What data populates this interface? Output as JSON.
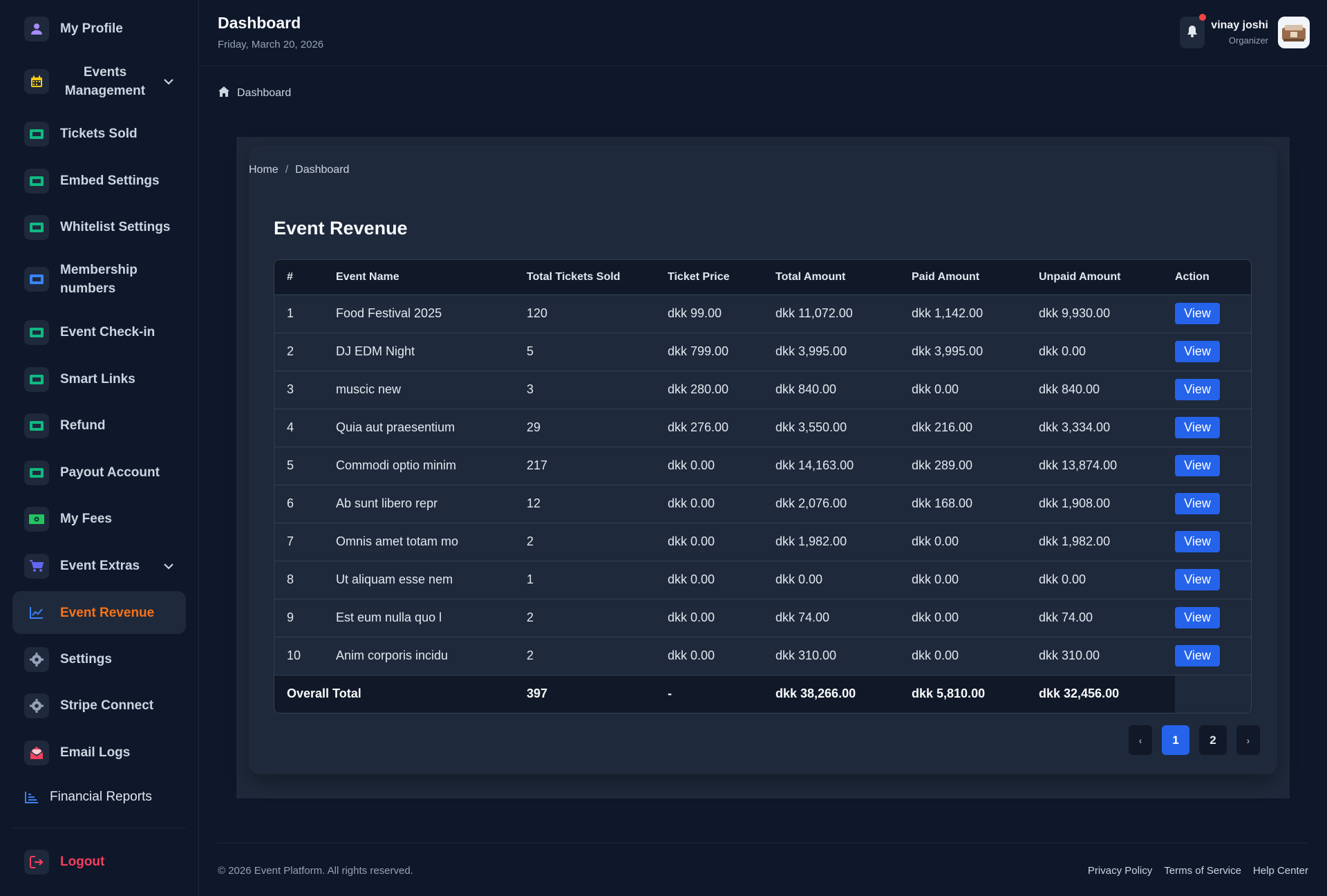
{
  "sidebar": {
    "items": [
      {
        "label": "My Profile",
        "icon": "user-icon",
        "color": "#a78bfa"
      },
      {
        "label": "Events\nManagement",
        "icon": "calendar-icon",
        "color": "#facc15"
      },
      {
        "label": "Tickets Sold",
        "icon": "ticket-icon",
        "color": "#10b981"
      },
      {
        "label": "Embed Settings",
        "icon": "ticket-icon",
        "color": "#10b981"
      },
      {
        "label": "Whitelist Settings",
        "icon": "ticket-icon",
        "color": "#10b981"
      },
      {
        "label": "Membership\nnumbers",
        "icon": "ticket-icon",
        "color": "#3b82f6"
      },
      {
        "label": "Event Check-in",
        "icon": "ticket-icon",
        "color": "#10b981"
      },
      {
        "label": "Smart Links",
        "icon": "ticket-icon",
        "color": "#10b981"
      },
      {
        "label": "Refund",
        "icon": "ticket-icon",
        "color": "#10b981"
      },
      {
        "label": "Payout Account",
        "icon": "ticket-icon",
        "color": "#10b981"
      },
      {
        "label": "My Fees",
        "icon": "money-icon",
        "color": "#22c55e"
      },
      {
        "label": "Event Extras",
        "icon": "cart-icon",
        "color": "#6366f1"
      },
      {
        "label": "Event Revenue",
        "icon": "chart-line-icon",
        "color": "#3b82f6"
      },
      {
        "label": "Settings",
        "icon": "gear-icon",
        "color": "#94a3b8"
      },
      {
        "label": "Stripe Connect",
        "icon": "gear-icon",
        "color": "#94a3b8"
      },
      {
        "label": "Email Logs",
        "icon": "envelope-open-icon",
        "color": "#f43f5e"
      },
      {
        "label": "Financial Reports",
        "icon": "bar-chart-icon",
        "color": "#3b82f6"
      }
    ],
    "logout_label": "Logout"
  },
  "header": {
    "title": "Dashboard",
    "date": "Friday, March 20, 2026",
    "user_name": "vinay joshi",
    "user_role": "Organizer"
  },
  "breadcrumb_top": "Dashboard",
  "breadcrumb": {
    "home": "Home",
    "separator": "/",
    "current": "Dashboard"
  },
  "section_title": "Event Revenue",
  "table": {
    "columns": [
      "#",
      "Event Name",
      "Total Tickets Sold",
      "Ticket Price",
      "Total Amount",
      "Paid Amount",
      "Unpaid Amount",
      "Action"
    ],
    "rows": [
      {
        "n": "1",
        "name": "Food Festival 2025",
        "sold": "120",
        "price": "dkk 99.00",
        "total": "dkk 11,072.00",
        "paid": "dkk 1,142.00",
        "unpaid": "dkk 9,930.00"
      },
      {
        "n": "2",
        "name": "DJ EDM Night",
        "sold": "5",
        "price": "dkk 799.00",
        "total": "dkk 3,995.00",
        "paid": "dkk 3,995.00",
        "unpaid": "dkk 0.00"
      },
      {
        "n": "3",
        "name": "muscic new",
        "sold": "3",
        "price": "dkk 280.00",
        "total": "dkk 840.00",
        "paid": "dkk 0.00",
        "unpaid": "dkk 840.00"
      },
      {
        "n": "4",
        "name": "Quia aut praesentium",
        "sold": "29",
        "price": "dkk 276.00",
        "total": "dkk 3,550.00",
        "paid": "dkk 216.00",
        "unpaid": "dkk 3,334.00"
      },
      {
        "n": "5",
        "name": "Commodi optio minim",
        "sold": "217",
        "price": "dkk 0.00",
        "total": "dkk 14,163.00",
        "paid": "dkk 289.00",
        "unpaid": "dkk 13,874.00"
      },
      {
        "n": "6",
        "name": "Ab sunt libero repr",
        "sold": "12",
        "price": "dkk 0.00",
        "total": "dkk 2,076.00",
        "paid": "dkk 168.00",
        "unpaid": "dkk 1,908.00"
      },
      {
        "n": "7",
        "name": "Omnis amet totam mo",
        "sold": "2",
        "price": "dkk 0.00",
        "total": "dkk 1,982.00",
        "paid": "dkk 0.00",
        "unpaid": "dkk 1,982.00"
      },
      {
        "n": "8",
        "name": "Ut aliquam esse nem",
        "sold": "1",
        "price": "dkk 0.00",
        "total": "dkk 0.00",
        "paid": "dkk 0.00",
        "unpaid": "dkk 0.00"
      },
      {
        "n": "9",
        "name": "Est eum nulla quo l",
        "sold": "2",
        "price": "dkk 0.00",
        "total": "dkk 74.00",
        "paid": "dkk 0.00",
        "unpaid": "dkk 74.00"
      },
      {
        "n": "10",
        "name": "Anim corporis incidu",
        "sold": "2",
        "price": "dkk 0.00",
        "total": "dkk 310.00",
        "paid": "dkk 0.00",
        "unpaid": "dkk 310.00"
      }
    ],
    "view_label": "View",
    "total": {
      "label": "Overall Total",
      "sold": "397",
      "price": "-",
      "total": "dkk 38,266.00",
      "paid": "dkk 5,810.00",
      "unpaid": "dkk 32,456.00"
    }
  },
  "pagination": {
    "prev": "‹",
    "pages": [
      "1",
      "2"
    ],
    "current": "1",
    "next": "›"
  },
  "footer": {
    "copyright": "© 2026 Event Platform. All rights reserved.",
    "links": [
      "Privacy Policy",
      "Terms of Service",
      "Help Center"
    ]
  },
  "colors": {
    "accent": "#2563eb",
    "active": "#f97316",
    "danger": "#f43f5e",
    "background": "#0f172a",
    "panel": "#1e293b"
  }
}
